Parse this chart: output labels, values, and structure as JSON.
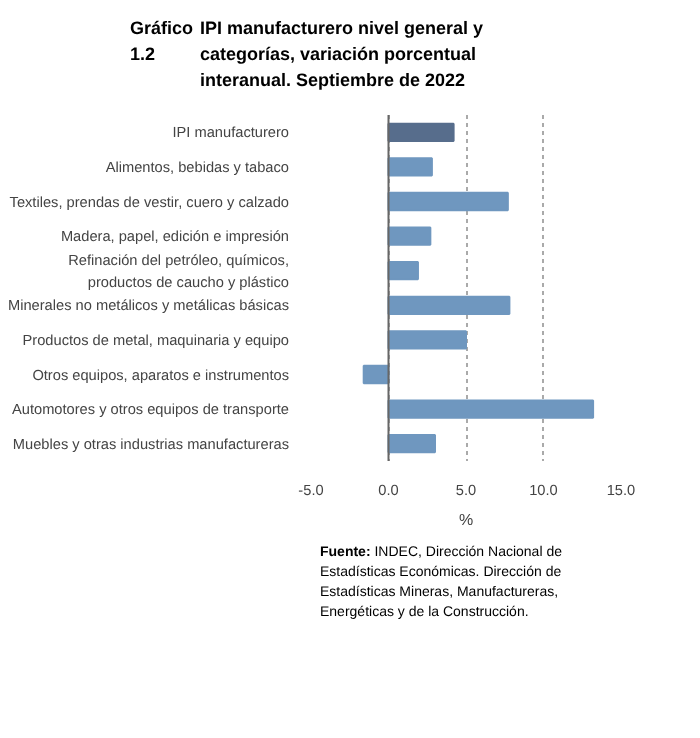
{
  "chart_data": {
    "type": "bar",
    "orientation": "horizontal",
    "title": "IPI manufacturero nivel general y categorías, variación porcentual interanual. Septiembre de 2022",
    "xlabel": "%",
    "categories": [
      "IPI manufacturero",
      "Alimentos, bebidas y tabaco",
      "Textiles, prendas de vestir, cuero y calzado",
      "Madera, papel, edición e impresión",
      "Refinación del petróleo, químicos,\nproductos de caucho y plástico",
      "Minerales no metálicos y metálicas básicas",
      "Productos de metal, maquinaria y equipo",
      "Otros equipos, aparatos e instrumentos",
      "Automotores y otros equipos de transporte",
      "Muebles y otras industrias manufactureras"
    ],
    "values": [
      4.2,
      2.8,
      7.7,
      2.7,
      1.9,
      7.8,
      5.0,
      -1.6,
      13.2,
      3.0
    ],
    "colors": [
      "#576d8c",
      "#6f97bf",
      "#6f97bf",
      "#6f97bf",
      "#6f97bf",
      "#6f97bf",
      "#6f97bf",
      "#6f97bf",
      "#6f97bf",
      "#6f97bf"
    ],
    "xlim": [
      -5,
      15
    ],
    "xticks": [
      {
        "value": -5,
        "label": "-5.0"
      },
      {
        "value": 0,
        "label": "0.0"
      },
      {
        "value": 5,
        "label": "5.0"
      },
      {
        "value": 10,
        "label": "10.0"
      },
      {
        "value": 15,
        "label": "15.0"
      }
    ],
    "grid": "x",
    "annotations": [
      "Gráfico 1.2",
      "Fuente: INDEC, Dirección Nacional de Estadísticas Económicas. Dirección de Estadísticas Mineras, Manufactureras, Energéticas y de la Construcción."
    ]
  }
}
